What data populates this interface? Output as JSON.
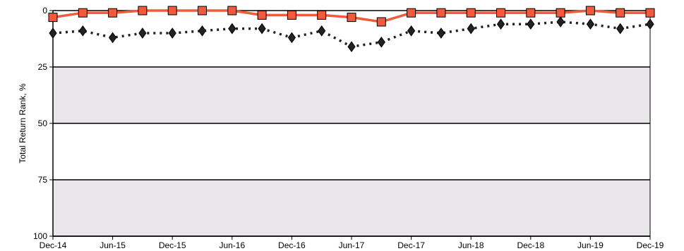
{
  "chart_data": {
    "type": "line",
    "ylabel": "Total Return Rank, %",
    "xlabel": "",
    "title": "",
    "ylim": [
      0,
      100
    ],
    "y_inverted": true,
    "y_ticks": [
      0,
      25,
      50,
      75,
      100
    ],
    "x_tick_labels": [
      "Dec-14",
      "Jun-15",
      "Dec-15",
      "Jun-16",
      "Dec-16",
      "Jun-17",
      "Dec-17",
      "Jun-18",
      "Dec-18",
      "Jun-19",
      "Dec-19"
    ],
    "x": [
      "Dec-14",
      "Mar-15",
      "Jun-15",
      "Sep-15",
      "Dec-15",
      "Mar-16",
      "Jun-16",
      "Sep-16",
      "Dec-16",
      "Mar-17",
      "Jun-17",
      "Sep-17",
      "Dec-17",
      "Mar-18",
      "Jun-18",
      "Sep-18",
      "Dec-18",
      "Mar-19",
      "Jun-19",
      "Sep-19",
      "Dec-19"
    ],
    "bands": [
      {
        "from": 25,
        "to": 50,
        "color": "#e8e6e8"
      },
      {
        "from": 75,
        "to": 100,
        "color": "#e8e6e8"
      }
    ],
    "series": [
      {
        "marker": "square",
        "line_style": "solid",
        "color": "#f15a3a",
        "values": [
          3,
          1,
          1,
          0,
          0,
          0,
          0,
          2,
          2,
          2,
          3,
          5,
          1,
          1,
          1,
          1,
          1,
          1,
          0,
          1,
          1
        ]
      },
      {
        "marker": "diamond",
        "line_style": "dotted",
        "color": "#222222",
        "values": [
          10,
          9,
          12,
          10,
          10,
          9,
          8,
          8,
          12,
          9,
          16,
          14,
          9,
          10,
          8,
          6,
          6,
          5,
          6,
          8,
          6
        ]
      }
    ],
    "grid": true,
    "legend": "none"
  }
}
